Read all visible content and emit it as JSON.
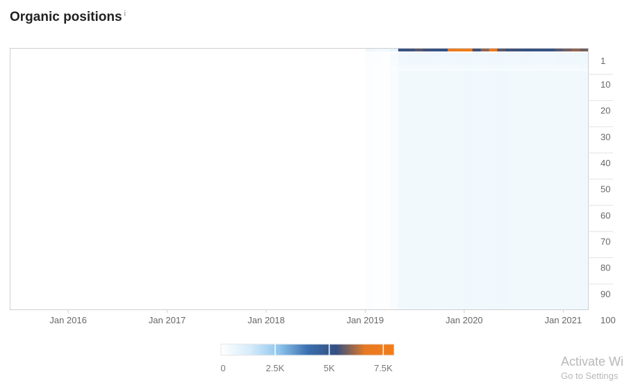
{
  "title": "Organic positions",
  "info_icon": "i",
  "chart_data": {
    "type": "heatmap",
    "x_tick_labels": [
      "Jan 2016",
      "Jan 2017",
      "Jan 2018",
      "Jan 2019",
      "Jan 2020",
      "Jan 2021"
    ],
    "x_range": [
      "2015-06",
      "2021-04"
    ],
    "y_tick_labels": [
      "1",
      "10",
      "20",
      "30",
      "40",
      "50",
      "60",
      "70",
      "80",
      "90",
      "100"
    ],
    "y_range": [
      1,
      100
    ],
    "data_start": "2019-01",
    "colorbar": {
      "tick_labels": [
        "0",
        "2.5K",
        "5K",
        "7.5K"
      ],
      "range": [
        0,
        8000
      ],
      "colors": [
        "#ffffff",
        "#d6ecfa",
        "#8ec6ee",
        "#3b6fb0",
        "#344f80",
        "#e97a22",
        "#f07d1a"
      ]
    },
    "monthly_intensity": [
      {
        "month": "2019-01",
        "top": 600,
        "rest": 120
      },
      {
        "month": "2019-02",
        "top": 500,
        "rest": 100
      },
      {
        "month": "2019-03",
        "top": 450,
        "rest": 60
      },
      {
        "month": "2019-04",
        "top": 800,
        "rest": 200
      },
      {
        "month": "2019-05",
        "top": 5200,
        "rest": 420
      },
      {
        "month": "2019-06",
        "top": 5400,
        "rest": 450
      },
      {
        "month": "2019-07",
        "top": 5600,
        "rest": 450
      },
      {
        "month": "2019-08",
        "top": 5400,
        "rest": 440
      },
      {
        "month": "2019-09",
        "top": 5200,
        "rest": 430
      },
      {
        "month": "2019-10",
        "top": 5300,
        "rest": 420
      },
      {
        "month": "2019-11",
        "top": 6800,
        "rest": 440
      },
      {
        "month": "2019-12",
        "top": 7600,
        "rest": 450
      },
      {
        "month": "2020-01",
        "top": 7600,
        "rest": 460
      },
      {
        "month": "2020-02",
        "top": 5400,
        "rest": 450
      },
      {
        "month": "2020-03",
        "top": 6000,
        "rest": 450
      },
      {
        "month": "2020-04",
        "top": 7000,
        "rest": 470
      },
      {
        "month": "2020-05",
        "top": 5600,
        "rest": 460
      },
      {
        "month": "2020-06",
        "top": 5400,
        "rest": 450
      },
      {
        "month": "2020-07",
        "top": 5400,
        "rest": 440
      },
      {
        "month": "2020-08",
        "top": 5300,
        "rest": 430
      },
      {
        "month": "2020-09",
        "top": 5200,
        "rest": 420
      },
      {
        "month": "2020-10",
        "top": 5200,
        "rest": 420
      },
      {
        "month": "2020-11",
        "top": 5200,
        "rest": 410
      },
      {
        "month": "2020-12",
        "top": 5600,
        "rest": 430
      },
      {
        "month": "2021-01",
        "top": 5800,
        "rest": 440
      },
      {
        "month": "2021-02",
        "top": 6000,
        "rest": 450
      },
      {
        "month": "2021-03",
        "top": 5800,
        "rest": 460
      }
    ]
  },
  "watermark": {
    "line1": "Activate Wi",
    "line2": "Go to Settings"
  }
}
